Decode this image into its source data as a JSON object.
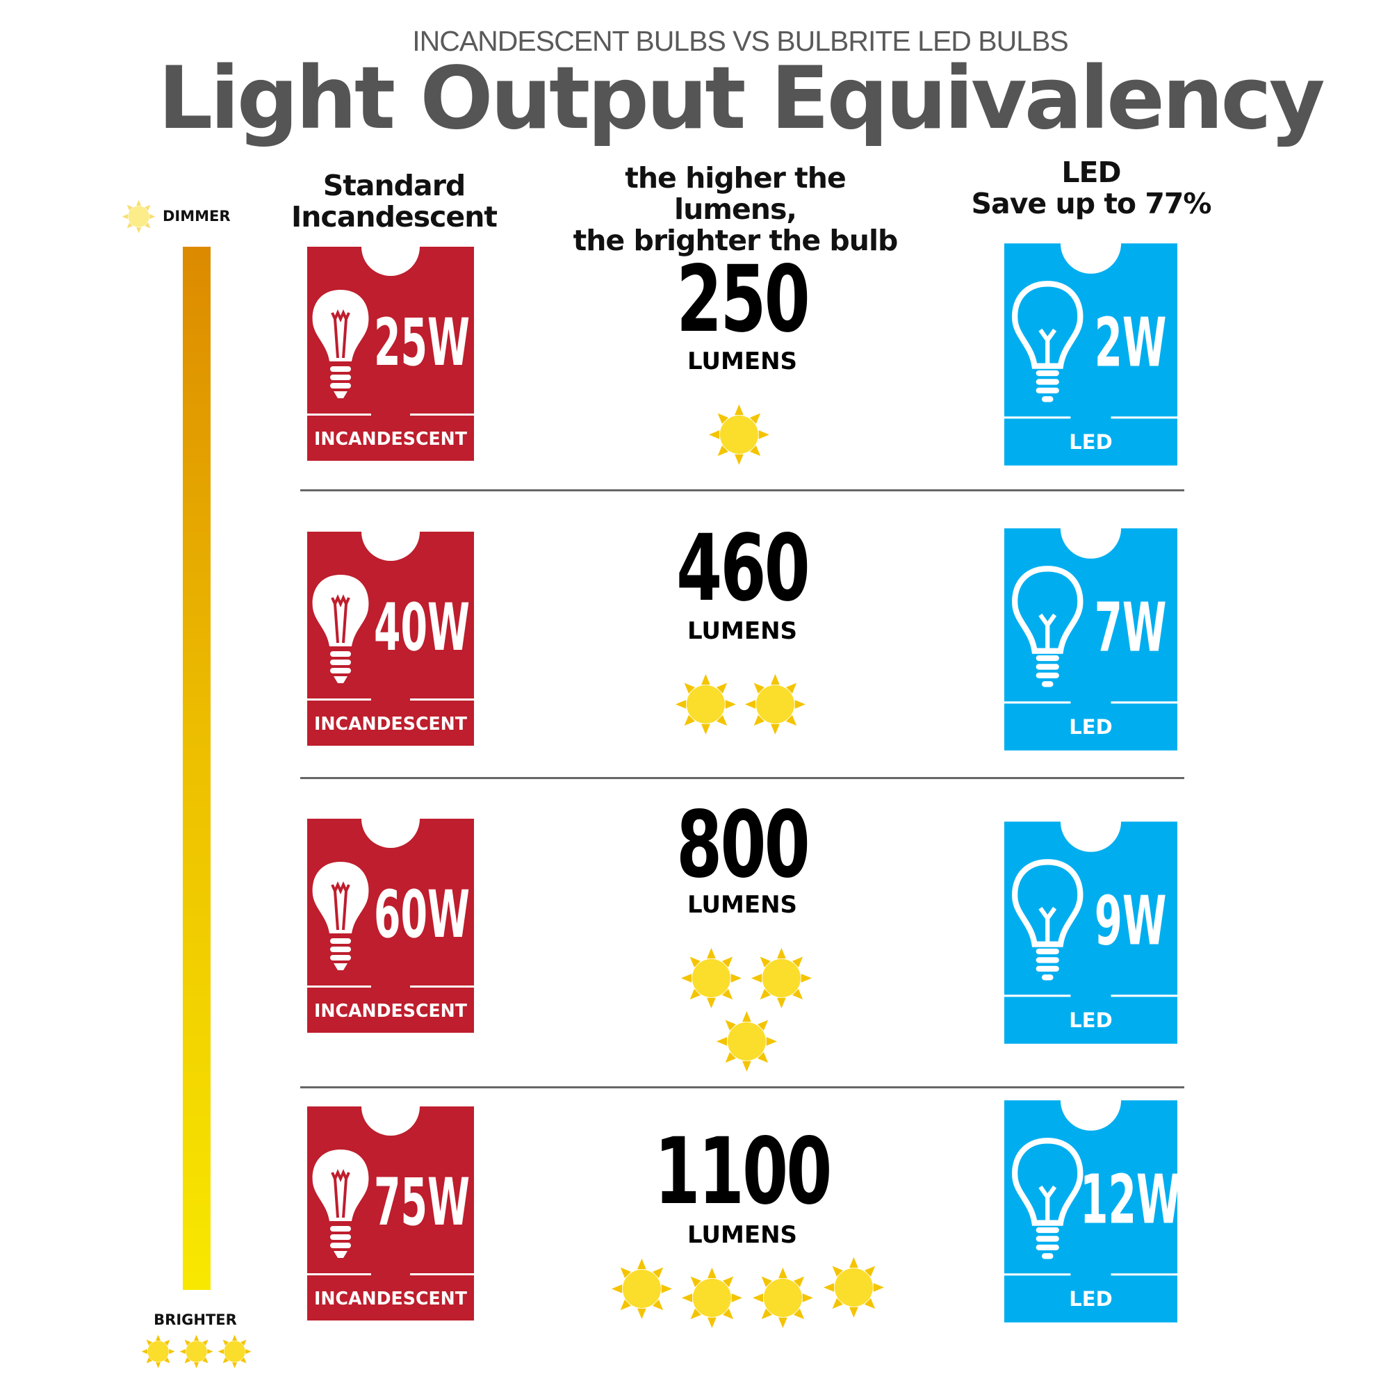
{
  "header": {
    "subtitle": "INCANDESCENT BULBS VS BULBRITE LED BULBS",
    "title": "Light Output Equivalency"
  },
  "columns": {
    "incandescent_line1": "Standard",
    "incandescent_line2": "Incandescent",
    "middle_line1": "the higher the lumens,",
    "middle_line2": "the brighter the bulb",
    "led_line1": "LED",
    "led_line2": "Save up to 77%"
  },
  "scale": {
    "top_label": "DIMMER",
    "bottom_label": "BRIGHTER",
    "top_suns": 1,
    "bottom_suns": 3,
    "gradient_colors": [
      "#dc8a00",
      "#f8e800"
    ]
  },
  "colors": {
    "incandescent": "#be1e2d",
    "led": "#00aeef",
    "sun": "#fbdd2c",
    "sun_rays": "#f4c400"
  },
  "card_labels": {
    "incandescent": "INCANDESCENT",
    "led": "LED"
  },
  "lumens_unit": "LUMENS",
  "rows": [
    {
      "incandescent_watts": "25W",
      "lumens": "250",
      "led_watts": "2W",
      "suns": 1
    },
    {
      "incandescent_watts": "40W",
      "lumens": "460",
      "led_watts": "7W",
      "suns": 2
    },
    {
      "incandescent_watts": "60W",
      "lumens": "800",
      "led_watts": "9W",
      "suns": 3
    },
    {
      "incandescent_watts": "75W",
      "lumens": "1100",
      "led_watts": "12W",
      "suns": 4
    }
  ]
}
